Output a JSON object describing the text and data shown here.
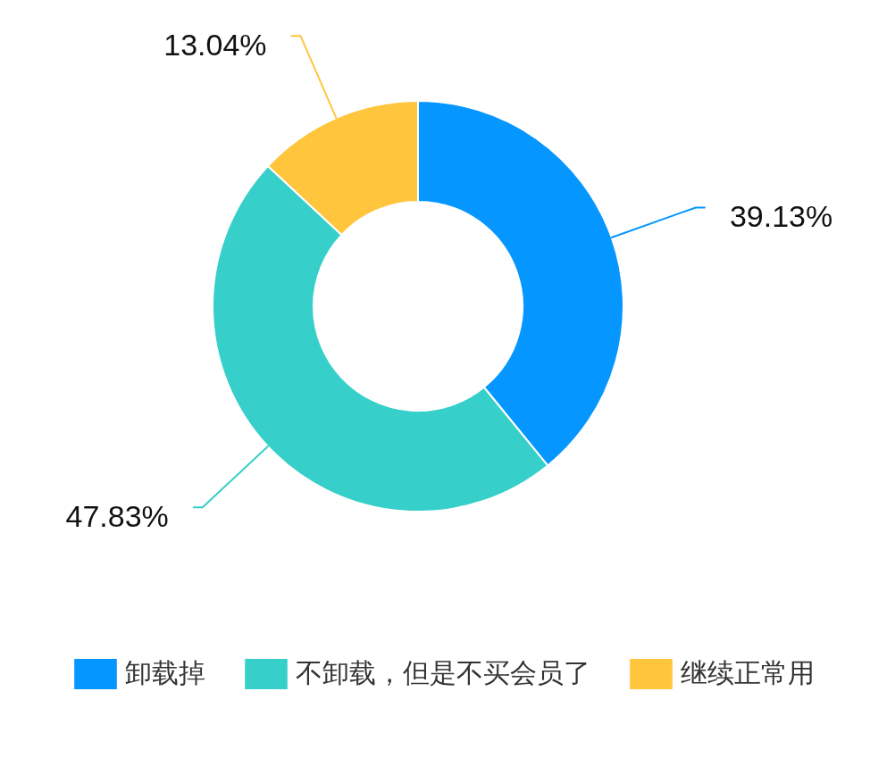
{
  "chart_data": {
    "type": "donut",
    "categories": [
      "卸载掉",
      "不卸载，但是不买会员了",
      "继续正常用"
    ],
    "values": [
      39.13,
      47.83,
      13.04
    ],
    "colors": [
      "#0596ff",
      "#36cfc9",
      "#ffc53d"
    ],
    "value_labels": [
      "39.13%",
      "47.83%",
      "13.04%"
    ],
    "legend": "bottom"
  }
}
